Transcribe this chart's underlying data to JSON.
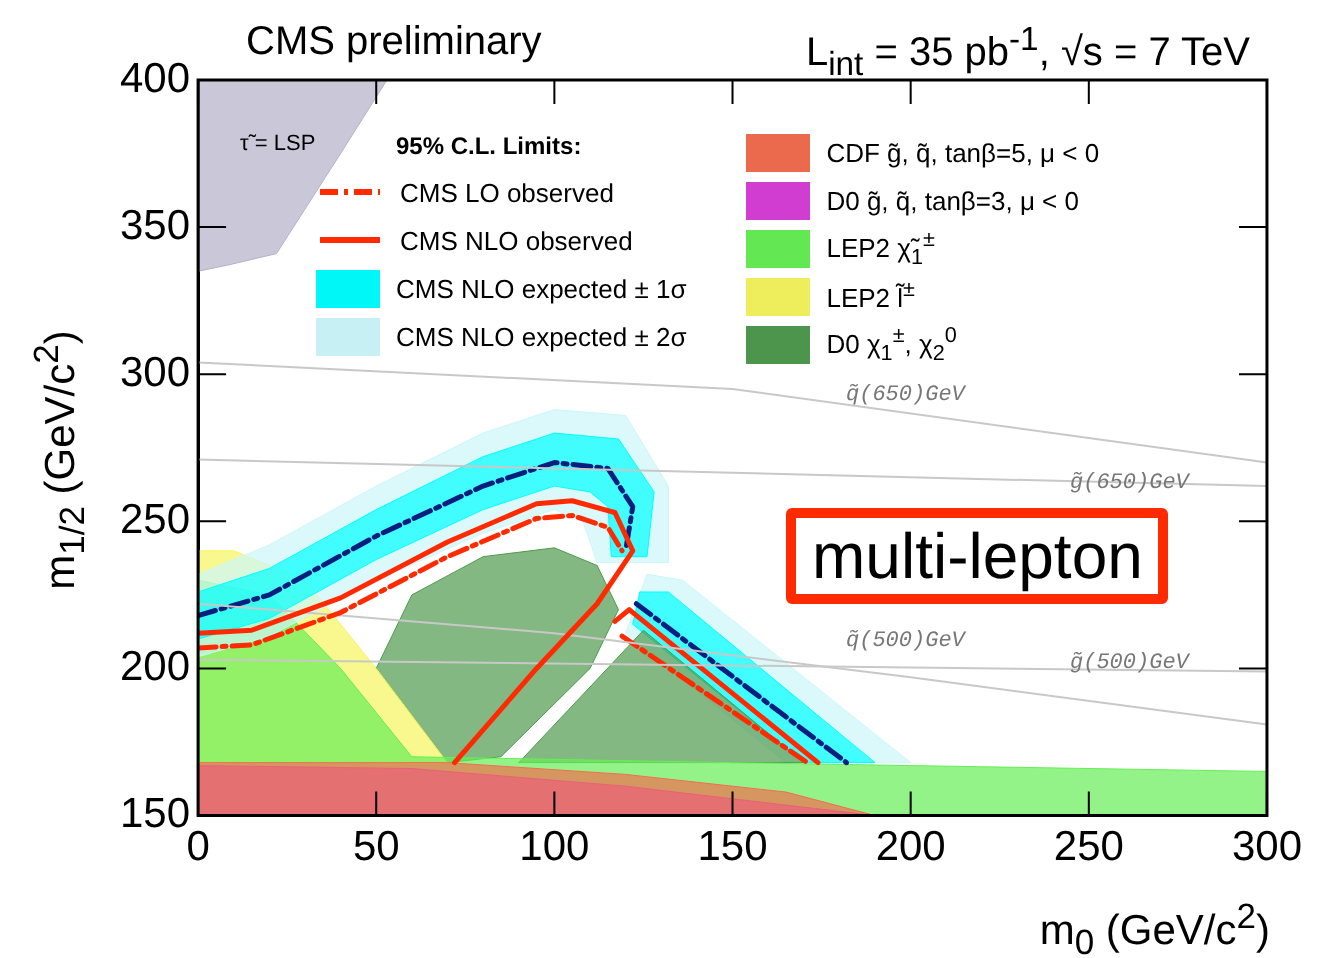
{
  "chart_data": {
    "type": "line",
    "title": "CMS preliminary",
    "subtitle": "L$_{int}$ = 35 pb$^{-1}$, √s = 7 TeV",
    "xlabel": "m$_{0}$ (GeV/c$^{2}$)",
    "ylabel": "m$_{1/2}$ (GeV/c$^{2}$)",
    "legend_title": "95% C.L. Limits:",
    "legend": "top",
    "xlim": [
      0,
      300
    ],
    "ylim": [
      150,
      400
    ],
    "xticks": [
      0,
      50,
      100,
      150,
      200,
      250,
      300
    ],
    "yticks": [
      150,
      200,
      250,
      300,
      350,
      400
    ],
    "grid": false,
    "series": [
      {
        "name": "CMS LO observed",
        "type": "line",
        "line_style": "dashed",
        "color": "#ff2a00",
        "x": [
          0,
          15,
          40,
          70,
          95,
          105,
          115,
          119
        ],
        "values": [
          207,
          208,
          219,
          238,
          251,
          252,
          248,
          240
        ]
      },
      {
        "name": "CMS NLO observed",
        "type": "line",
        "line_style": "solid",
        "color": "#ff2a00",
        "x": [
          0,
          15,
          40,
          70,
          95,
          105,
          117,
          122,
          112,
          95,
          72
        ],
        "values": [
          212,
          213,
          224,
          243,
          256,
          257,
          253,
          240,
          222,
          200,
          168
        ]
      },
      {
        "name": "CMS NLO expected ± 1σ",
        "type": "area",
        "color": "#00ffff",
        "x": [
          0,
          20,
          50,
          80,
          100,
          118,
          128,
          126,
          116,
          115,
          110,
          100,
          80,
          50,
          20,
          0
        ],
        "values": [
          226,
          234,
          254,
          272,
          280,
          278,
          260,
          238,
          238,
          255,
          260,
          262,
          254,
          237,
          217,
          210
        ]
      },
      {
        "name": "CMS NLO expected ± 2σ",
        "type": "area",
        "color": "#ccf7fa",
        "x": [
          0,
          20,
          50,
          80,
          100,
          120,
          132,
          132,
          112,
          108,
          100,
          80,
          50,
          20,
          0
        ],
        "values": [
          232,
          242,
          262,
          280,
          288,
          286,
          262,
          236,
          236,
          250,
          254,
          246,
          230,
          211,
          204
        ]
      },
      {
        "name": "CDF  g̃, q̃, tanβ=5, μ < 0",
        "type": "area",
        "color": "#f26d50",
        "x": [
          0,
          0,
          70,
          120,
          165,
          190
        ],
        "values": [
          150,
          168,
          168,
          164,
          158,
          150
        ]
      },
      {
        "name": "D0  g̃, q̃, tanβ=3, μ < 0",
        "type": "area",
        "color": "#d63fd6",
        "x": [
          0,
          0,
          60,
          120,
          190
        ],
        "values": [
          150,
          167,
          166,
          160,
          150
        ]
      },
      {
        "name": "LEP2  χ̃$_{1}$$^{±}$",
        "type": "area",
        "color": "#66ee55",
        "x": [
          0,
          300,
          300,
          200,
          150,
          60,
          40,
          20,
          0
        ],
        "values": [
          150,
          150,
          165,
          167,
          168,
          170,
          200,
          225,
          230
        ]
      },
      {
        "name": "LEP2  l̃$^{±}$",
        "type": "area",
        "color": "#f5f560",
        "x": [
          0,
          70,
          50,
          30,
          10,
          0
        ],
        "values": [
          168,
          168,
          200,
          230,
          240,
          240
        ]
      },
      {
        "name": "D0  χ$_{1}$$^{±}$, χ$_{2}$$^{0}$",
        "type": "area",
        "color": "#4f9a4f",
        "x": [
          50,
          60,
          80,
          100,
          112,
          118,
          110,
          85,
          70
        ],
        "values": [
          200,
          225,
          238,
          241,
          235,
          220,
          200,
          170,
          168
        ]
      },
      {
        "type": "area",
        "color": "#4f9a4f",
        "x": [
          90,
          125,
          170
        ],
        "values": [
          168,
          213,
          168
        ]
      },
      {
        "type": "area",
        "color": "#b3b1c8",
        "x": [
          0,
          53,
          40,
          22,
          8,
          0
        ],
        "values": [
          400,
          400,
          375,
          341,
          337,
          335
        ]
      },
      {
        "type": "area",
        "color": "#00ffff",
        "x": [
          124,
          132,
          190,
          170,
          122
        ],
        "values": [
          226,
          226,
          168,
          168,
          215
        ]
      },
      {
        "type": "area",
        "color": "#ccf7fa",
        "x": [
          126,
          136,
          200,
          165,
          120
        ],
        "values": [
          232,
          230,
          168,
          168,
          212
        ]
      },
      {
        "type": "line",
        "line_style": "solid",
        "color": "#c8c8c8",
        "x": [
          0,
          150,
          300
        ],
        "values": [
          304,
          295,
          270
        ]
      },
      {
        "type": "line",
        "line_style": "solid",
        "color": "#c8c8c8",
        "x": [
          0,
          300
        ],
        "values": [
          271,
          262
        ]
      },
      {
        "type": "line",
        "line_style": "solid",
        "color": "#c8c8c8",
        "x": [
          0,
          100,
          200,
          300
        ],
        "values": [
          222,
          212,
          197,
          181
        ]
      },
      {
        "type": "line",
        "line_style": "solid",
        "color": "#c8c8c8",
        "x": [
          0,
          300
        ],
        "values": [
          203,
          199
        ]
      },
      {
        "type": "line",
        "line_style": "dashed",
        "color": "#0a1e80",
        "x": [
          0,
          20,
          50,
          80,
          100,
          115,
          122,
          120
        ],
        "values": [
          218,
          225,
          245,
          262,
          270,
          268,
          255,
          240
        ]
      },
      {
        "type": "line",
        "line_style": "dashed",
        "color": "#0a1e80",
        "x": [
          123,
          182
        ],
        "values": [
          222,
          168
        ]
      },
      {
        "type": "line",
        "line_style": "dashed",
        "color": "#ff2a00",
        "x": [
          119,
          171
        ],
        "values": [
          211,
          168
        ]
      },
      {
        "type": "line",
        "line_style": "solid",
        "color": "#ff2a00",
        "x": [
          117,
          121,
          174
        ],
        "values": [
          216,
          220,
          168
        ]
      }
    ],
    "annotations": [
      "τ̃ = LSP",
      "q̃(650)GeV",
      "g̃(650)GeV",
      "q̃(500)GeV",
      "g̃(500)GeV",
      "multi-lepton"
    ]
  }
}
